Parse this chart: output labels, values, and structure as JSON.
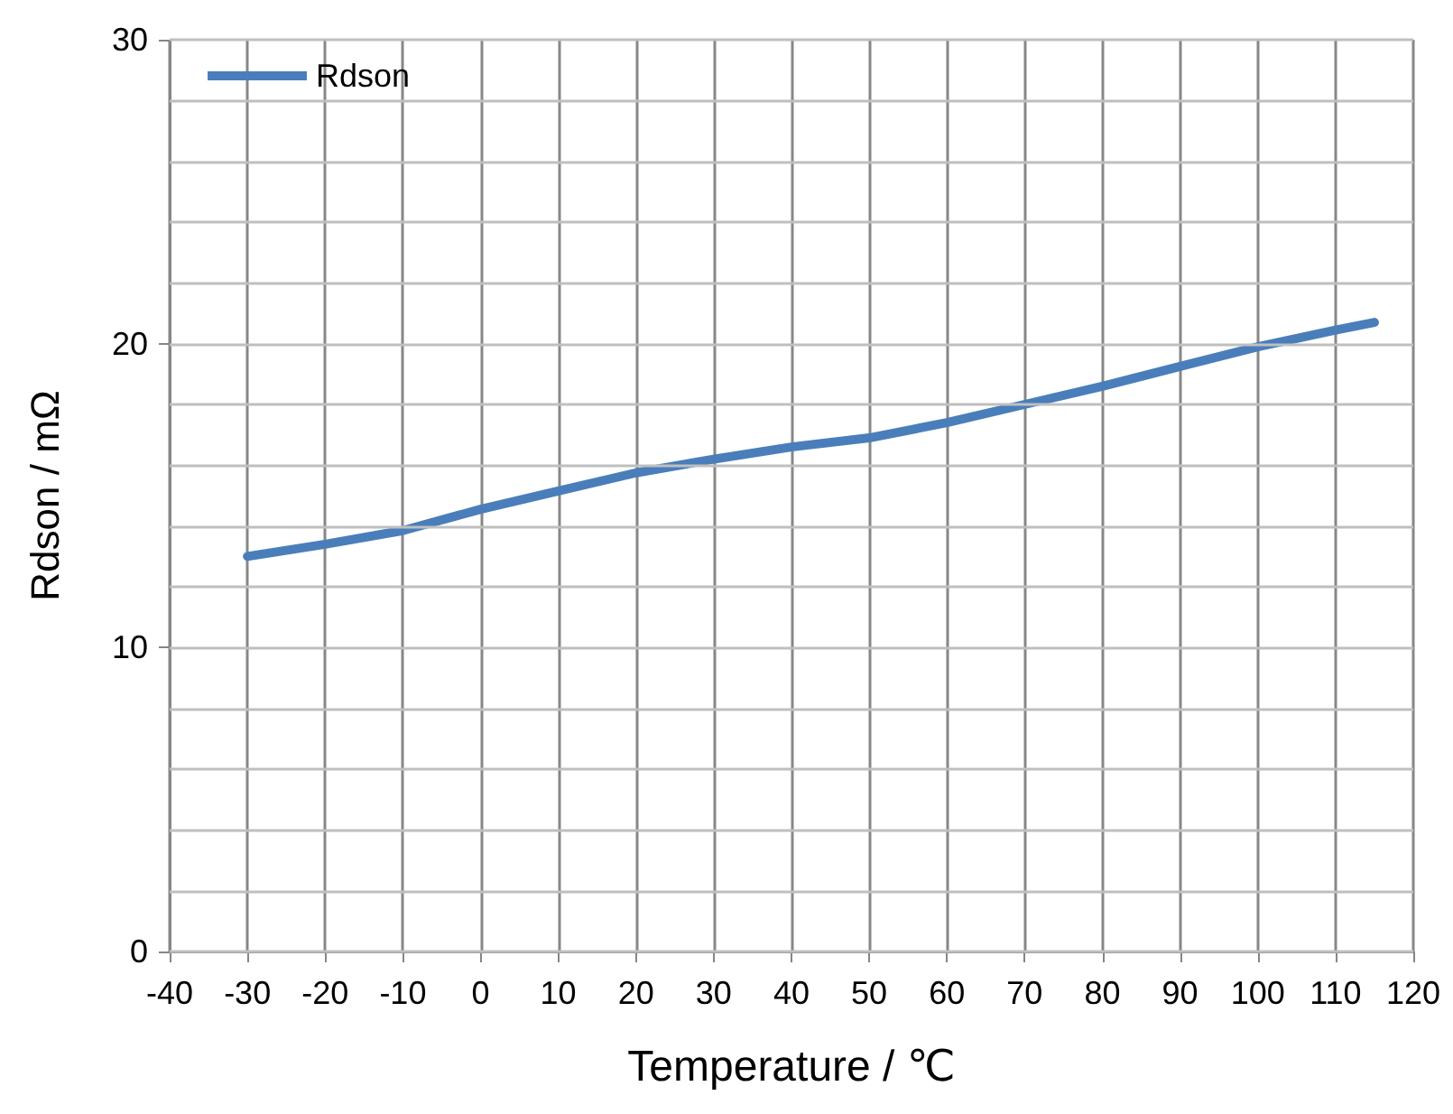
{
  "chart_data": {
    "type": "line",
    "xlabel": "Temperature / ℃",
    "ylabel": "Rdson / mΩ",
    "x": [
      -30,
      -20,
      -10,
      0,
      10,
      20,
      30,
      40,
      50,
      60,
      70,
      80,
      90,
      100,
      110,
      115
    ],
    "series": [
      {
        "name": "Rdson",
        "color": "#4a7ebb",
        "values": [
          13.0,
          13.4,
          13.85,
          14.55,
          15.15,
          15.75,
          16.2,
          16.6,
          16.9,
          17.4,
          18.0,
          18.6,
          19.25,
          19.9,
          20.45,
          20.7
        ]
      }
    ],
    "xlim": [
      -40,
      120
    ],
    "xticks": [
      -40,
      -30,
      -20,
      -10,
      0,
      10,
      20,
      30,
      40,
      50,
      60,
      70,
      80,
      90,
      100,
      110,
      120
    ],
    "ylim": [
      0,
      30
    ],
    "yticks": [
      0,
      {
        "value": 2,
        "label": null
      },
      {
        "value": 4,
        "label": null
      },
      {
        "value": 6,
        "label": null
      },
      {
        "value": 8,
        "label": null
      },
      10,
      {
        "value": 12,
        "label": null
      },
      {
        "value": 14,
        "label": null
      },
      {
        "value": 16,
        "label": null
      },
      {
        "value": 18,
        "label": null
      },
      20,
      {
        "value": 22,
        "label": null
      },
      {
        "value": 24,
        "label": null
      },
      {
        "value": 26,
        "label": null
      },
      {
        "value": 28,
        "label": null
      },
      30
    ],
    "grid": true,
    "legend": "top left",
    "marker": "none",
    "line_style": "solid"
  }
}
